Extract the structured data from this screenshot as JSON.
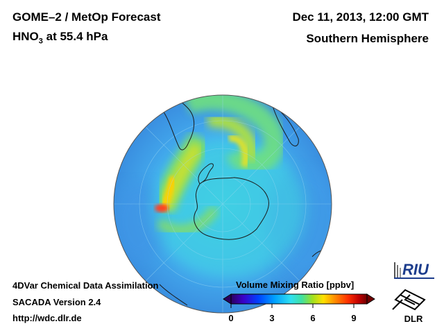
{
  "header": {
    "title_line1": "GOME–2 / MetOp Forecast",
    "title_line2_prefix": "HNO",
    "title_line2_sub": "3",
    "title_line2_suffix": " at 55.4 hPa",
    "date": "Dec 11, 2013, 12:00 GMT",
    "region": "Southern Hemisphere"
  },
  "footer": {
    "line1": "4DVar Chemical Data Assimilation",
    "line2": "SACADA Version 2.4",
    "line3": "http://wdc.dlr.de"
  },
  "colorbar": {
    "title": "Volume Mixing Ratio [ppbv]",
    "ticks": [
      "0",
      "3",
      "6",
      "9"
    ],
    "min": 0,
    "max": 10,
    "colors": [
      "#2a0060",
      "#3a00c8",
      "#0040ff",
      "#00a0ff",
      "#30e0f0",
      "#40e0a0",
      "#a0e020",
      "#ffe000",
      "#ff9000",
      "#ff3000",
      "#c00000",
      "#700000"
    ]
  },
  "logos": {
    "riu": "RIU",
    "dlr": "DLR"
  },
  "map": {
    "projection": "orthographic, south polar",
    "colors": {
      "ocean_field": "#4ea8f0",
      "background_field": "#3c9ae8",
      "high_band": "#9ee040",
      "peak": "#ff4020",
      "coast": "#1a1a1a"
    }
  }
}
